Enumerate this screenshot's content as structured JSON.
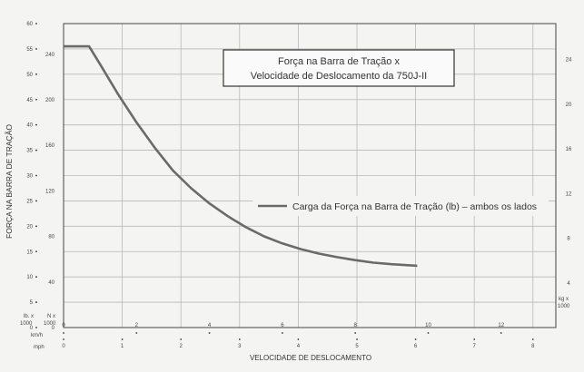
{
  "chart_data": {
    "type": "line",
    "title_line1": "Força na Barra de Tração x",
    "title_line2": "Velocidade de Deslocamento da 750J-II",
    "xlabel": "VELOCIDADE DE DESLOCAMENTO",
    "ylabel": "FORÇA NA BARRA DE TRAÇÃO",
    "legend_label": "Carga da Força na Barra de Tração (lb) – ambos os lados",
    "left_unit_headers": {
      "lb": "lb. x",
      "lb_scale": "1000",
      "kn": "N x",
      "kn_scale": "1000"
    },
    "right_unit_header": {
      "unit": "kg x",
      "scale": "1000"
    },
    "bottom_unit_headers": {
      "kmh": "km/h",
      "mph": "mph"
    },
    "ylim_lb": [
      0,
      60
    ],
    "xlim_kmh": [
      0,
      13.5
    ],
    "y_ticks_lb": [
      "60",
      "55",
      "50",
      "45",
      "40",
      "35",
      "30",
      "25",
      "20",
      "15",
      "10",
      "5",
      "0"
    ],
    "y_ticks_kn": [
      "240",
      "200",
      "160",
      "120",
      "80",
      "40",
      "0"
    ],
    "y_ticks_kg": [
      "24",
      "20",
      "16",
      "12",
      "8",
      "4"
    ],
    "x_ticks_kmh": [
      "0",
      "2",
      "4",
      "6",
      "8",
      "10",
      "12"
    ],
    "x_ticks_mph": [
      "0",
      "1",
      "2",
      "3",
      "4",
      "5",
      "6",
      "7",
      "8"
    ],
    "series": [
      {
        "name": "Carga da Força na Barra de Tração (lb) – ambos os lados",
        "x_kmh": [
          0,
          0.7,
          1,
          1.5,
          2,
          2.5,
          3,
          3.5,
          4,
          4.5,
          5,
          5.5,
          6,
          6.5,
          7,
          7.5,
          8,
          8.5,
          9,
          9.7
        ],
        "y_lb": [
          55.5,
          55.5,
          52,
          46,
          40.5,
          35.5,
          31,
          27.5,
          24.5,
          22,
          19.8,
          18,
          16.6,
          15.5,
          14.6,
          13.9,
          13.3,
          12.8,
          12.5,
          12.2
        ]
      }
    ]
  }
}
